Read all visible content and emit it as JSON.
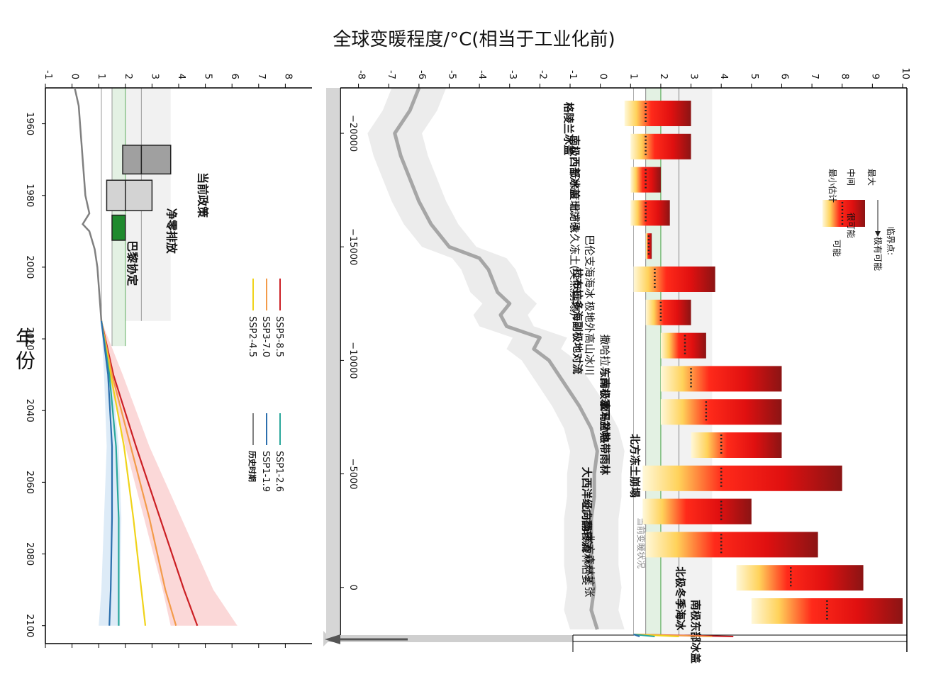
{
  "title": "全球变暖程度/°C(相当于工业化前)",
  "x_axis_label": "年份",
  "current_warming_label": "当前变暖状况",
  "chart_data": [
    {
      "type": "line",
      "name": "warming-projections",
      "x_ticks": [
        1960,
        1980,
        2000,
        2020,
        2040,
        2060,
        2080,
        2100
      ],
      "y_ticks": [
        -1,
        0,
        1,
        2,
        3,
        4,
        5,
        6,
        7,
        8
      ],
      "ylim": [
        -1,
        9
      ],
      "xlim": [
        1950,
        2105
      ],
      "reference_lines": [
        {
          "name": "1.1",
          "value": 1.1
        },
        {
          "name": "1.5",
          "value": 1.5
        },
        {
          "name": "2",
          "value": 2.0
        },
        {
          "name": "2.6",
          "value": 2.6
        }
      ],
      "boxes": [
        {
          "label": "当前政策",
          "y_range": [
            1.9,
            3.7
          ],
          "median": 2.6,
          "color": "#a0a0a0"
        },
        {
          "label": "净零排放",
          "y_range": [
            1.3,
            3.0
          ],
          "median": 2.0,
          "color": "#d3d3d3"
        },
        {
          "label": "巴黎协定",
          "y_range": [
            1.5,
            2.0
          ],
          "median": null,
          "color": "#1f8a2e"
        }
      ],
      "series": [
        {
          "name": "SSP5-8.5",
          "color": "#cc1f24",
          "x": [
            2015,
            2030,
            2050,
            2070,
            2090,
            2100
          ],
          "y": [
            1.1,
            1.55,
            2.4,
            3.3,
            4.2,
            4.7
          ]
        },
        {
          "name": "SSP3-7.0",
          "color": "#f39b4a",
          "x": [
            2015,
            2030,
            2050,
            2070,
            2090,
            2100
          ],
          "y": [
            1.1,
            1.5,
            2.2,
            2.9,
            3.5,
            3.9
          ]
        },
        {
          "name": "SSP2-4.5",
          "color": "#f0d31a",
          "x": [
            2015,
            2030,
            2050,
            2070,
            2090,
            2100
          ],
          "y": [
            1.1,
            1.45,
            1.95,
            2.3,
            2.6,
            2.75
          ]
        },
        {
          "name": "SSP1-2.6",
          "color": "#2aa79b",
          "x": [
            2015,
            2030,
            2050,
            2070,
            2090,
            2100
          ],
          "y": [
            1.1,
            1.4,
            1.65,
            1.75,
            1.75,
            1.75
          ]
        },
        {
          "name": "SSP1-1.9",
          "color": "#2c6fad",
          "x": [
            2015,
            2030,
            2050,
            2070,
            2090,
            2100
          ],
          "y": [
            1.1,
            1.35,
            1.5,
            1.5,
            1.45,
            1.4
          ]
        },
        {
          "name": "历史时期",
          "color": "#808080",
          "x": [
            1950,
            1955,
            1960,
            1965,
            1970,
            1975,
            1980,
            1985,
            1988,
            1990,
            1995,
            2000,
            2005,
            2010,
            2015
          ],
          "y": [
            0.1,
            0.25,
            0.3,
            0.35,
            0.4,
            0.45,
            0.5,
            0.65,
            0.4,
            0.65,
            0.85,
            0.95,
            1.0,
            1.05,
            1.1
          ]
        }
      ],
      "projection_bands": [
        {
          "name": "SSP5-8.5",
          "color": "#f9c8c8",
          "low": [
            1.1,
            1.35,
            2.0,
            2.7,
            3.4,
            3.7
          ],
          "high": [
            1.1,
            1.9,
            2.9,
            4.1,
            5.3,
            6.2
          ]
        },
        {
          "name": "SSP1-1.9",
          "color": "#cfe3f3",
          "low": [
            1.1,
            1.2,
            1.3,
            1.2,
            1.1,
            1.0
          ],
          "high": [
            1.1,
            1.5,
            1.75,
            1.85,
            1.8,
            1.8
          ]
        }
      ]
    },
    {
      "type": "line",
      "name": "paleo-temperature",
      "x_ticks": [
        -20000,
        -15000,
        -10000,
        -5000,
        0
      ],
      "y_ticks": [
        -8,
        -7,
        -6,
        -5,
        -4,
        -3,
        -2,
        -1,
        0,
        1,
        2,
        3,
        4,
        5,
        6,
        7,
        8,
        9,
        10
      ],
      "ylim": [
        -8.6,
        10
      ],
      "xlim": [
        -22000,
        2100
      ],
      "series": [
        {
          "name": "temperature",
          "color": "#a6a6a6",
          "x": [
            -22000,
            -21000,
            -20000,
            -19000,
            -18000,
            -17000,
            -16000,
            -15000,
            -14500,
            -14000,
            -13000,
            -12500,
            -12000,
            -11500,
            -11000,
            -10500,
            -10000,
            -9000,
            -8000,
            -7000,
            -6000,
            -5000,
            -4000,
            -3000,
            -2000,
            -1000,
            0,
            1000,
            1850
          ],
          "y": [
            -6.0,
            -6.3,
            -6.8,
            -6.6,
            -6.3,
            -6.0,
            -5.6,
            -5.0,
            -4.0,
            -3.7,
            -3.4,
            -3.0,
            -3.3,
            -3.1,
            -2.0,
            -2.2,
            -1.7,
            -1.2,
            -0.7,
            -0.3,
            -0.1,
            -0.2,
            -0.2,
            -0.3,
            -0.3,
            -0.3,
            -0.2,
            -0.3,
            -0.1
          ]
        }
      ],
      "reference_lines": [
        {
          "name": "1.5",
          "value": 1.5
        },
        {
          "name": "2",
          "value": 2.0
        },
        {
          "name": "2.6",
          "value": 2.6
        }
      ],
      "tipping_elements": [
        {
          "label": "格陵兰冰盖",
          "min": 0.8,
          "central": 1.5,
          "max": 3.0,
          "bold": true
        },
        {
          "label": "南极西部冰盖",
          "min": 1.0,
          "central": 1.5,
          "max": 3.0,
          "bold": true
        },
        {
          "label": "低纬度珊瑚礁",
          "min": 1.0,
          "central": 1.5,
          "max": 2.0,
          "bold": false
        },
        {
          "label": "北方永久冻土(突然崩塌)",
          "min": 1.0,
          "central": 1.5,
          "max": 2.3,
          "bold": false
        },
        {
          "label": "巴伦支海海冰",
          "min": 1.5,
          "central": 1.6,
          "max": 1.7,
          "bold": false
        },
        {
          "label": "拉布拉多海副极地对流",
          "min": 1.1,
          "central": 1.8,
          "max": 3.8,
          "bold": true
        },
        {
          "label": "极地外高山冰川",
          "min": 1.5,
          "central": 2.0,
          "max": 3.0,
          "bold": false
        },
        {
          "label": "撒哈拉与西非季风",
          "min": 2.0,
          "central": 2.8,
          "max": 3.5,
          "bold": false
        },
        {
          "label": "东南极冰下盆地",
          "min": 2.0,
          "central": 3.0,
          "max": 6.0,
          "bold": true
        },
        {
          "label": "亚马孙热带雨林",
          "min": 2.0,
          "central": 3.5,
          "max": 6.0,
          "bold": true
        },
        {
          "label": "北方冻土崩塌",
          "min": 3.0,
          "central": 4.0,
          "max": 6.0,
          "bold": true
        },
        {
          "label": "大西洋经向翻转流",
          "min": 1.4,
          "central": 4.0,
          "max": 8.0,
          "bold": true
        },
        {
          "label": "北方南部森林枯萎",
          "min": 1.4,
          "central": 4.0,
          "max": 5.0,
          "bold": false
        },
        {
          "label": "北方森林扩张",
          "min": 1.5,
          "central": 4.0,
          "max": 7.2,
          "bold": false
        },
        {
          "label": "北极冬季海冰",
          "min": 4.5,
          "central": 6.3,
          "max": 8.7,
          "bold": true
        },
        {
          "label": "南极东部冰盖",
          "min": 5.0,
          "central": 7.5,
          "max": 10.0,
          "bold": true
        }
      ],
      "legend": {
        "top_title": "临界点:",
        "top_sub": "极有可能",
        "max_label": "最大",
        "central_label": "中间",
        "central_note": "很可能",
        "min_label": "最小估计",
        "min_note": "可能"
      }
    }
  ]
}
